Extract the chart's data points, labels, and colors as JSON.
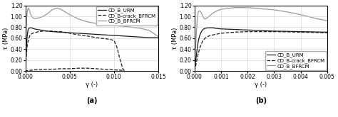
{
  "fig_width": 4.74,
  "fig_height": 1.65,
  "dpi": 100,
  "background_color": "#ffffff",
  "subplot_a": {
    "xlabel": "γ (-)",
    "ylabel": "τ (MPa)",
    "label_bottom": "(a)",
    "xlim": [
      0.0,
      0.015
    ],
    "ylim": [
      0.0,
      1.2
    ],
    "xticks": [
      0.0,
      0.005,
      0.01,
      0.015
    ],
    "yticks": [
      0.0,
      0.2,
      0.4,
      0.6,
      0.8,
      1.0,
      1.2
    ],
    "legend_labels": [
      "CD_B_URM",
      "CD_B-crack_BFRCM",
      "CD_B_BFRCM"
    ],
    "grid": true
  },
  "subplot_b": {
    "xlabel": "γ (-)",
    "ylabel": "τ (MPa)",
    "label_bottom": "(b)",
    "xlim": [
      0.0,
      0.005
    ],
    "ylim": [
      0.0,
      1.2
    ],
    "xticks": [
      0.0,
      0.001,
      0.002,
      0.003,
      0.004,
      0.005
    ],
    "yticks": [
      0.0,
      0.2,
      0.4,
      0.6,
      0.8,
      1.0,
      1.2
    ],
    "legend_labels": [
      "CD_B_URM",
      "CD_B-crack_BFRCM",
      "CD_B_BFRCM"
    ],
    "grid": true
  },
  "color_urm": "#1a1a1a",
  "color_crack": "#1a1a1a",
  "color_bfrcm": "#999999",
  "lw_urm": 0.9,
  "lw_crack": 0.9,
  "lw_bfrcm": 0.9,
  "font_size_tick": 5.5,
  "font_size_label": 6.0,
  "font_size_legend": 5.0,
  "font_size_bottom_label": 7
}
